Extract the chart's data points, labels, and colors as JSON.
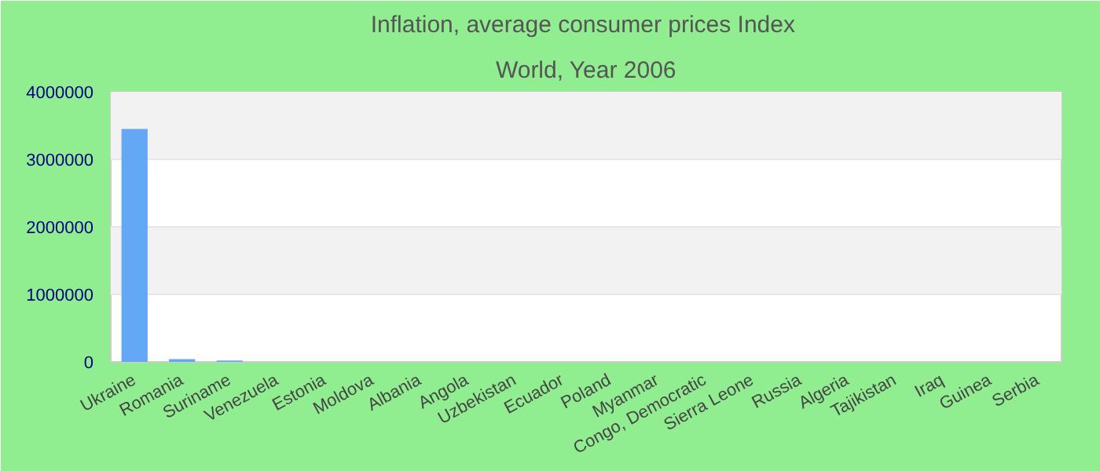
{
  "chart_data": {
    "type": "bar",
    "title": "Inflation, average consumer prices  Index",
    "subtitle": "World, Year 2006",
    "categories": [
      "Ukraine",
      "Romania",
      "Suriname",
      "Venezuela",
      "Estonia",
      "Moldova",
      "Albania",
      "Angola",
      "Uzbekistan",
      "Ecuador",
      "Poland",
      "Myanmar",
      "Congo, Democratic",
      "Sierra Leone",
      "Russia",
      "Algeria",
      "Tajikistan",
      "Iraq",
      "Guinea",
      "Serbia"
    ],
    "values": [
      3450000,
      40000,
      20000,
      0,
      0,
      0,
      0,
      0,
      0,
      0,
      0,
      0,
      0,
      0,
      0,
      0,
      0,
      0,
      0,
      0
    ],
    "color": "#64a8f5",
    "ylim": [
      0,
      4000000
    ],
    "yticks": [
      0,
      1000000,
      2000000,
      3000000,
      4000000
    ],
    "grid": "y"
  }
}
